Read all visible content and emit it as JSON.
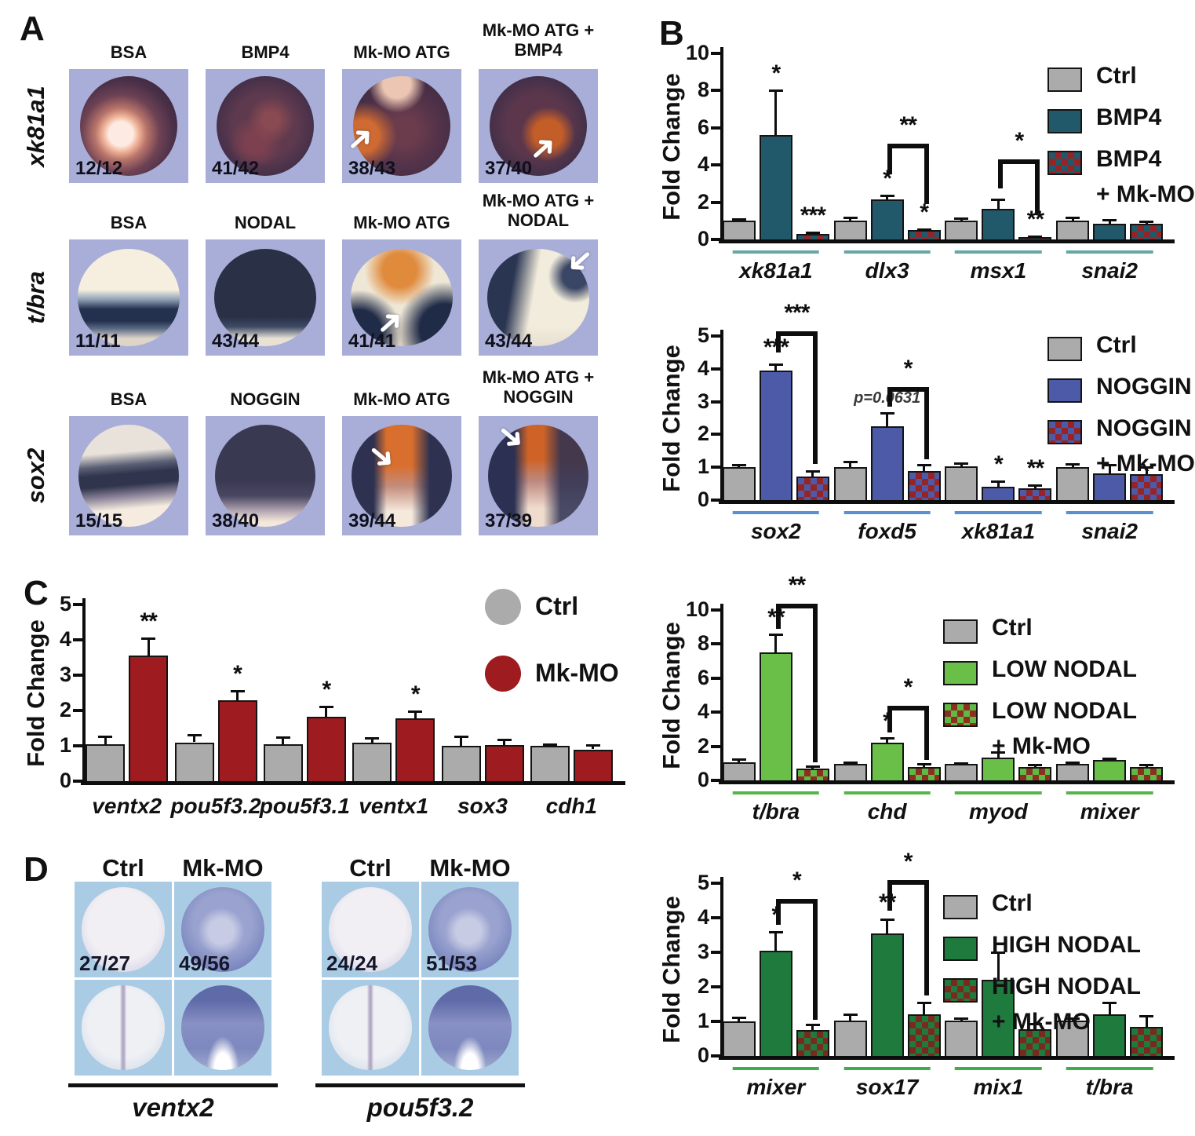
{
  "panels": {
    "a_label": "A",
    "b_label": "B",
    "c_label": "C",
    "d_label": "D"
  },
  "panelA": {
    "rows": [
      {
        "gene": "xk81a1",
        "cols": [
          {
            "header": [
              "BSA"
            ],
            "count": "12/12",
            "arrow": null
          },
          {
            "header": [
              "BMP4"
            ],
            "count": "41/42",
            "arrow": null
          },
          {
            "header": [
              "Mk-MO ATG"
            ],
            "count": "38/43",
            "arrow": "ne"
          },
          {
            "header": [
              "Mk-MO ATG +",
              "BMP4"
            ],
            "count": "37/40",
            "arrow": "ne"
          }
        ]
      },
      {
        "gene": "t/bra",
        "cols": [
          {
            "header": [
              "BSA"
            ],
            "count": "11/11",
            "arrow": null
          },
          {
            "header": [
              "NODAL"
            ],
            "count": "43/44",
            "arrow": null
          },
          {
            "header": [
              "Mk-MO ATG"
            ],
            "count": "41/41",
            "arrow": "ne"
          },
          {
            "header": [
              "Mk-MO ATG +",
              "NODAL"
            ],
            "count": "43/44",
            "arrow": "sw"
          }
        ]
      },
      {
        "gene": "sox2",
        "cols": [
          {
            "header": [
              "BSA"
            ],
            "count": "15/15",
            "arrow": null
          },
          {
            "header": [
              "NOGGIN"
            ],
            "count": "38/40",
            "arrow": null
          },
          {
            "header": [
              "Mk-MO ATG"
            ],
            "count": "39/44",
            "arrow": "se"
          },
          {
            "header": [
              "Mk-MO ATG +",
              "NOGGIN"
            ],
            "count": "37/39",
            "arrow": "se"
          }
        ]
      }
    ]
  },
  "panelD": {
    "groups": [
      {
        "gene": "ventx2",
        "headers": [
          "Ctrl",
          "Mk-MO"
        ],
        "counts": [
          "27/27",
          "49/56"
        ]
      },
      {
        "gene": "pou5f3.2",
        "headers": [
          "Ctrl",
          "Mk-MO"
        ],
        "counts": [
          "24/24",
          "51/53"
        ]
      }
    ]
  },
  "colors": {
    "panelA_bg": "#a9aed8",
    "panelD_bg": "#a9cbe3",
    "ctrl_gray": "#ababab",
    "bmp4_teal": "#21596a",
    "noggin_blue": "#4d5aa7",
    "low_nodal_green": "#6abf49",
    "high_nodal_green": "#1f7a3e",
    "mkmo_red": "#9e1b1f",
    "checker_red": "#962427"
  },
  "chart_data": [
    {
      "id": "B1",
      "type": "bar",
      "title": "",
      "xlabel": "",
      "ylabel": "Fold Change",
      "ylim": [
        0,
        10
      ],
      "yticks": [
        0,
        2,
        4,
        6,
        8,
        10
      ],
      "grid": false,
      "legend_position": "top-right",
      "categories": [
        "xk81a1",
        "dlx3",
        "msx1",
        "snai2"
      ],
      "category_underline_color": "#63a8a4",
      "series": [
        {
          "name": "Ctrl",
          "color": "#ababab",
          "values": [
            1.0,
            1.0,
            1.0,
            1.0
          ],
          "errors": [
            0.08,
            0.2,
            0.12,
            0.2
          ]
        },
        {
          "name": "BMP4",
          "color": "#21596a",
          "values": [
            5.6,
            2.15,
            1.65,
            0.85
          ],
          "errors": [
            2.4,
            0.2,
            0.5,
            0.2
          ]
        },
        {
          "name": "BMP4 + Mk-MO",
          "pattern": {
            "a": "#962427",
            "b": "#21596a"
          },
          "values": [
            0.3,
            0.5,
            0.08,
            0.85
          ],
          "errors": [
            0.06,
            0.05,
            0.03,
            0.12
          ]
        }
      ],
      "sig": [
        {
          "cat": 0,
          "series": 1,
          "label": "*"
        },
        {
          "cat": 0,
          "series": 2,
          "label": "***"
        },
        {
          "cat": 1,
          "series": 1,
          "label": "*"
        },
        {
          "cat": 1,
          "series": 2,
          "label": "*"
        },
        {
          "cat": 2,
          "series": 2,
          "label": "**"
        }
      ],
      "annotations": [],
      "brackets": [
        {
          "cat": 1,
          "fromSeries": 1,
          "toSeries": 2,
          "top": 5.15,
          "leftEnd": 3.5,
          "rightEnd": 1.9,
          "label": "**"
        },
        {
          "cat": 2,
          "fromSeries": 1,
          "toSeries": 2,
          "top": 4.3,
          "leftEnd": 2.75,
          "rightEnd": 1.4,
          "label": "*"
        }
      ],
      "legend": [
        {
          "label": "Ctrl"
        },
        {
          "label": "BMP4"
        },
        {
          "label": "BMP4",
          "label2": "+ Mk-MO"
        }
      ]
    },
    {
      "id": "B2",
      "type": "bar",
      "title": "",
      "xlabel": "",
      "ylabel": "Fold Change",
      "ylim": [
        0,
        5
      ],
      "yticks": [
        0,
        1,
        2,
        3,
        4,
        5
      ],
      "grid": false,
      "legend_position": "top-right",
      "categories": [
        "sox2",
        "foxd5",
        "xk81a1",
        "snai2"
      ],
      "category_underline_color": "#5b8fd0",
      "series": [
        {
          "name": "Ctrl",
          "color": "#ababab",
          "values": [
            1.0,
            1.0,
            1.02,
            1.0
          ],
          "errors": [
            0.07,
            0.18,
            0.1,
            0.1
          ]
        },
        {
          "name": "NOGGIN",
          "color": "#4d5aa7",
          "values": [
            3.95,
            2.25,
            0.4,
            0.82
          ],
          "errors": [
            0.2,
            0.4,
            0.18,
            0.25
          ]
        },
        {
          "name": "NOGGIN + Mk-MO",
          "pattern": {
            "a": "#962427",
            "b": "#4d5aa7"
          },
          "values": [
            0.72,
            0.88,
            0.36,
            0.8
          ],
          "errors": [
            0.16,
            0.2,
            0.1,
            0.2
          ]
        }
      ],
      "sig": [
        {
          "cat": 0,
          "series": 1,
          "label": "***"
        },
        {
          "cat": 2,
          "series": 1,
          "label": "*"
        },
        {
          "cat": 2,
          "series": 2,
          "label": "**"
        }
      ],
      "annotations": [
        {
          "cat": 1,
          "series": 1,
          "label": "p=0.0631"
        }
      ],
      "brackets": [
        {
          "cat": 0,
          "fromSeries": 1,
          "toSeries": 2,
          "top": 5.15,
          "leftEnd": 4.5,
          "rightEnd": 1.1,
          "label": "***"
        },
        {
          "cat": 1,
          "fromSeries": 1,
          "toSeries": 2,
          "top": 3.45,
          "leftEnd": 2.85,
          "rightEnd": 1.25,
          "label": "*"
        }
      ],
      "legend": [
        {
          "label": "Ctrl"
        },
        {
          "label": "NOGGIN"
        },
        {
          "label": "NOGGIN",
          "label2": "+ Mk-MO"
        }
      ]
    },
    {
      "id": "B3",
      "type": "bar",
      "title": "",
      "xlabel": "",
      "ylabel": "Fold Change",
      "ylim": [
        0,
        10
      ],
      "yticks": [
        0,
        2,
        4,
        6,
        8,
        10
      ],
      "grid": false,
      "legend_position": "top-right",
      "categories": [
        "t/bra",
        "chd",
        "myod",
        "mixer"
      ],
      "category_underline_color": "#56b54a",
      "series": [
        {
          "name": "Ctrl",
          "color": "#ababab",
          "values": [
            1.05,
            0.95,
            0.95,
            0.95
          ],
          "errors": [
            0.18,
            0.12,
            0.05,
            0.1
          ]
        },
        {
          "name": "LOW NODAL",
          "color": "#6abf49",
          "values": [
            7.5,
            2.2,
            1.35,
            1.2
          ],
          "errors": [
            1.05,
            0.3,
            0.3,
            0.1
          ]
        },
        {
          "name": "LOW NODAL + Mk-MO",
          "pattern": {
            "a": "#8d2f1f",
            "b": "#5fb944"
          },
          "values": [
            0.7,
            0.78,
            0.78,
            0.78
          ],
          "errors": [
            0.15,
            0.2,
            0.12,
            0.15
          ]
        }
      ],
      "sig": [
        {
          "cat": 0,
          "series": 1,
          "label": "**"
        },
        {
          "cat": 1,
          "series": 1,
          "label": "*"
        }
      ],
      "annotations": [],
      "brackets": [
        {
          "cat": 0,
          "fromSeries": 1,
          "toSeries": 2,
          "top": 10.35,
          "leftEnd": 8.9,
          "rightEnd": 1.05,
          "label": "**"
        },
        {
          "cat": 1,
          "fromSeries": 1,
          "toSeries": 2,
          "top": 4.4,
          "leftEnd": 2.8,
          "rightEnd": 1.2,
          "label": "*"
        }
      ],
      "legend": [
        {
          "label": "Ctrl"
        },
        {
          "label": "LOW NODAL"
        },
        {
          "label": "LOW NODAL",
          "label2": "+ Mk-MO"
        }
      ]
    },
    {
      "id": "B4",
      "type": "bar",
      "title": "",
      "xlabel": "",
      "ylabel": "Fold Change",
      "ylim": [
        0,
        5
      ],
      "yticks": [
        0,
        1,
        2,
        3,
        4,
        5
      ],
      "grid": false,
      "legend_position": "top-right",
      "categories": [
        "mixer",
        "sox17",
        "mix1",
        "t/bra"
      ],
      "category_underline_color": "#3fae49",
      "series": [
        {
          "name": "Ctrl",
          "color": "#ababab",
          "values": [
            1.0,
            1.02,
            1.02,
            1.02
          ],
          "errors": [
            0.12,
            0.18,
            0.07,
            0.07
          ]
        },
        {
          "name": "HIGH NODAL",
          "color": "#1f7a3e",
          "values": [
            3.05,
            3.55,
            2.2,
            1.2
          ],
          "errors": [
            0.55,
            0.4,
            0.8,
            0.35
          ]
        },
        {
          "name": "HIGH NODAL + Mk-MO",
          "pattern": {
            "a": "#7a2a1c",
            "b": "#1f7a3e"
          },
          "values": [
            0.75,
            1.2,
            0.78,
            0.85
          ],
          "errors": [
            0.15,
            0.35,
            0.15,
            0.3
          ]
        }
      ],
      "sig": [
        {
          "cat": 0,
          "series": 1,
          "label": "*"
        },
        {
          "cat": 1,
          "series": 1,
          "label": "**"
        }
      ],
      "annotations": [],
      "brackets": [
        {
          "cat": 0,
          "fromSeries": 1,
          "toSeries": 2,
          "top": 4.55,
          "leftEnd": 3.8,
          "rightEnd": 1.05,
          "label": "*"
        },
        {
          "cat": 1,
          "fromSeries": 1,
          "toSeries": 2,
          "top": 5.1,
          "leftEnd": 4.2,
          "rightEnd": 1.75,
          "label": "*"
        }
      ],
      "legend": [
        {
          "label": "Ctrl"
        },
        {
          "label": "HIGH NODAL"
        },
        {
          "label": "HIGH NODAL",
          "label2": "+ Mk-MO"
        }
      ]
    },
    {
      "id": "C",
      "type": "bar",
      "title": "",
      "xlabel": "",
      "ylabel": "Fold Change",
      "ylim": [
        0,
        5
      ],
      "yticks": [
        0,
        1,
        2,
        3,
        4,
        5
      ],
      "grid": false,
      "legend_position": "top-right",
      "categories": [
        "ventx2",
        "pou5f3.2",
        "pou5f3.1",
        "ventx1",
        "sox3",
        "cdh1"
      ],
      "category_underline_color": null,
      "series": [
        {
          "name": "Ctrl",
          "color": "#ababab",
          "values": [
            1.05,
            1.1,
            1.05,
            1.08,
            1.0,
            1.0
          ],
          "errors": [
            0.22,
            0.22,
            0.2,
            0.15,
            0.27,
            0.05
          ]
        },
        {
          "name": "Mk-MO",
          "color": "#9e1b1f",
          "values": [
            3.55,
            2.3,
            1.82,
            1.78,
            1.02,
            0.9
          ],
          "errors": [
            0.5,
            0.25,
            0.3,
            0.2,
            0.15,
            0.13
          ]
        }
      ],
      "sig": [
        {
          "cat": 0,
          "series": 1,
          "label": "**"
        },
        {
          "cat": 1,
          "series": 1,
          "label": "*"
        },
        {
          "cat": 2,
          "series": 1,
          "label": "*"
        },
        {
          "cat": 3,
          "series": 1,
          "label": "*"
        }
      ],
      "annotations": [],
      "brackets": [],
      "legend": [
        {
          "label": "Ctrl"
        },
        {
          "label": "Mk-MO"
        }
      ]
    }
  ]
}
